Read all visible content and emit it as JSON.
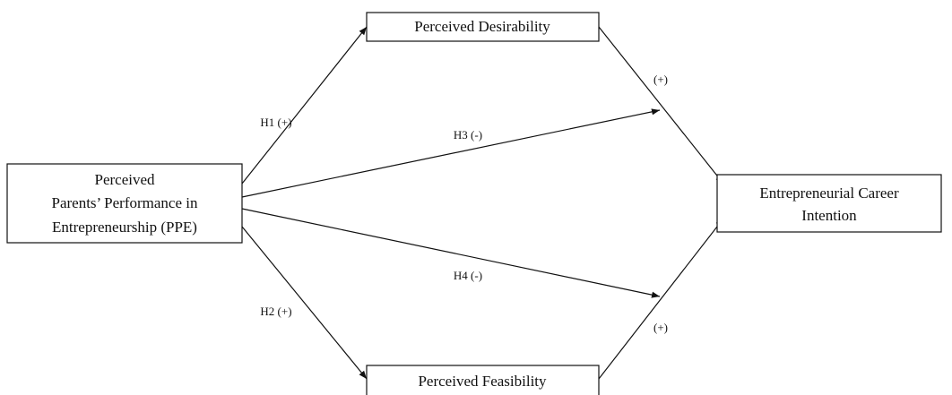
{
  "nodes": [
    {
      "lines": [
        "Perceived",
        "Parents’ Performance in",
        "Entrepreneurship (PPE)"
      ]
    },
    {
      "lines": [
        "Perceived Desirability"
      ]
    },
    {
      "lines": [
        "Perceived Feasibility"
      ]
    },
    {
      "lines": [
        "Entrepreneurial Career",
        "Intention"
      ]
    }
  ],
  "edges": [
    {
      "label": "H1 (+)"
    },
    {
      "label": "H2 (+)"
    },
    {
      "label": "H3 (-)"
    },
    {
      "label": "H4 (-)"
    },
    {
      "label": "(+)"
    },
    {
      "label": "(+)"
    }
  ]
}
